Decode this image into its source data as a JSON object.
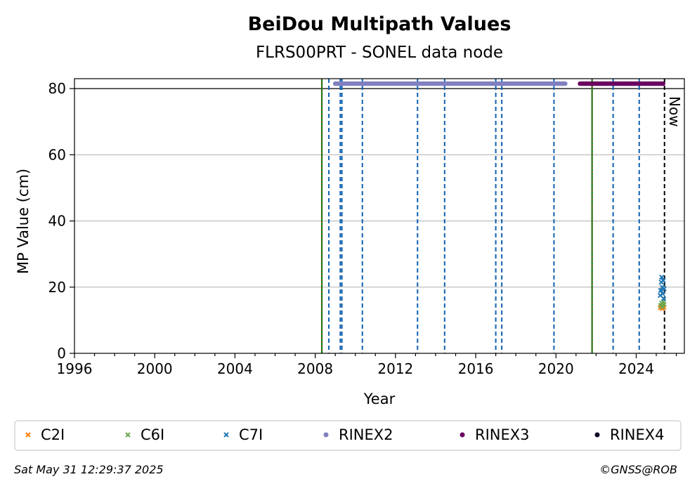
{
  "chart_data": {
    "type": "scatter",
    "title": "BeiDou Multipath Values",
    "subtitle": "FLRS00PRT - SONEL data node",
    "xlabel": "Year",
    "ylabel": "MP Value (cm)",
    "xlim": [
      1996,
      2026.4
    ],
    "ylim": [
      0,
      83
    ],
    "x_ticks": [
      1996,
      2000,
      2004,
      2008,
      2012,
      2016,
      2020,
      2024
    ],
    "y_ticks": [
      0,
      20,
      40,
      60,
      80
    ],
    "grid": "horizontal",
    "legend_position": "bottom",
    "now_label": "Now",
    "now_year": 2025.41,
    "reference_line_y": 80,
    "green_lines": [
      2008.33,
      2021.8
    ],
    "blue_dashed_lines": [
      2008.68,
      2009.25,
      2009.33,
      2010.35,
      2013.1,
      2014.45,
      2017.0,
      2017.3,
      2019.9,
      2022.85,
      2024.15
    ],
    "series": [
      {
        "name": "C2I",
        "marker": "x",
        "color": "#ff7f0e",
        "points": [
          [
            2025.2,
            13.8
          ],
          [
            2025.25,
            14.2
          ],
          [
            2025.3,
            13.5
          ],
          [
            2025.35,
            14.6
          ],
          [
            2025.38,
            13.9
          ]
        ]
      },
      {
        "name": "C6I",
        "marker": "x",
        "color": "#6aa84f",
        "points": [
          [
            2025.22,
            14.5
          ],
          [
            2025.27,
            15.2
          ],
          [
            2025.31,
            14.0
          ],
          [
            2025.36,
            15.6
          ],
          [
            2025.39,
            14.8
          ]
        ]
      },
      {
        "name": "C7I",
        "marker": "x",
        "color": "#1f77b4",
        "points": [
          [
            2025.2,
            17.5
          ],
          [
            2025.22,
            19.0
          ],
          [
            2025.25,
            21.5
          ],
          [
            2025.27,
            23.0
          ],
          [
            2025.3,
            20.0
          ],
          [
            2025.32,
            18.0
          ],
          [
            2025.35,
            22.0
          ],
          [
            2025.37,
            16.5
          ],
          [
            2025.39,
            19.5
          ]
        ]
      },
      {
        "name": "RINEX2",
        "marker": "o",
        "color": "#8080c0",
        "range": [
          2009.0,
          2020.5
        ],
        "y": 81.5
      },
      {
        "name": "RINEX3",
        "marker": "o",
        "color": "#6a0060",
        "range": [
          2021.2,
          2025.35
        ],
        "y": 81.5
      },
      {
        "name": "RINEX4",
        "marker": "o",
        "color": "#100020",
        "points": []
      }
    ]
  },
  "footer": {
    "timestamp": "Sat May 31 12:29:37 2025",
    "copyright": "©GNSS@ROB"
  }
}
